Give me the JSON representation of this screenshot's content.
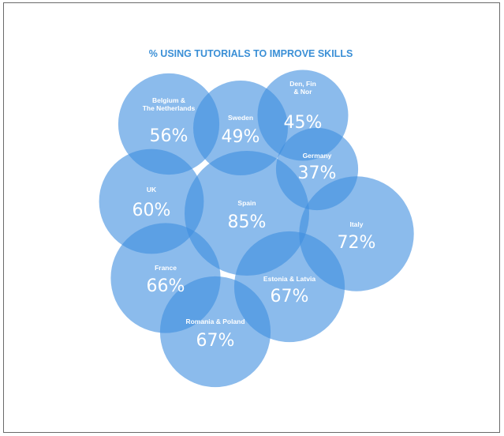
{
  "chart_data": {
    "type": "bubble",
    "title": "% USING TUTORIALS TO IMPROVE SKILLS",
    "fill_color": "#3d8ee0",
    "fill_opacity": 0.6,
    "text_color": "#ffffff",
    "title_color": "#3a8fd6",
    "bubbles": [
      {
        "label": [
          "Belgium &",
          "The Netherlands"
        ],
        "value": 56,
        "display": "56%"
      },
      {
        "label": [
          "Sweden"
        ],
        "value": 49,
        "display": "49%"
      },
      {
        "label": [
          "Den, Fin",
          "& Nor"
        ],
        "value": 45,
        "display": "45%"
      },
      {
        "label": [
          "Germany"
        ],
        "value": 37,
        "display": "37%"
      },
      {
        "label": [
          "UK"
        ],
        "value": 60,
        "display": "60%"
      },
      {
        "label": [
          "Spain"
        ],
        "value": 85,
        "display": "85%"
      },
      {
        "label": [
          "Italy"
        ],
        "value": 72,
        "display": "72%"
      },
      {
        "label": [
          "France"
        ],
        "value": 66,
        "display": "66%"
      },
      {
        "label": [
          "Estonia & Latvia"
        ],
        "value": 67,
        "display": "67%"
      },
      {
        "label": [
          "Romania & Poland"
        ],
        "value": 67,
        "display": "67%"
      }
    ]
  }
}
